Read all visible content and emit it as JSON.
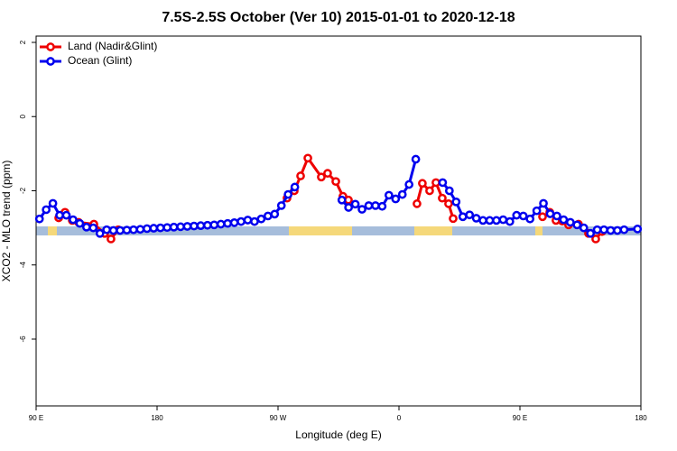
{
  "chart_data": {
    "type": "line",
    "title": "7.5S-2.5S October (Ver 10)   2015-01-01 to 2020-12-18",
    "x_label": "Longitude (deg E)",
    "y_label": "XCO2 - MLO trend (ppm)",
    "xlim": [
      90,
      540
    ],
    "ylim": [
      -7.8,
      2.17
    ],
    "xticks": [
      {
        "value": 90,
        "label": "90 E"
      },
      180,
      {
        "value": 270,
        "label": "90 W"
      },
      {
        "value": 360,
        "label": "0"
      },
      {
        "value": 450,
        "label": "90 E"
      },
      {
        "value": 540,
        "label": "180"
      }
    ],
    "yticks": [
      -6,
      -4,
      -2,
      0,
      2
    ],
    "legend": "top-left",
    "series": [
      {
        "name": "Land (Nadir&Glint)",
        "color": "#ee0000",
        "x": [
          106.8,
          111.5,
          116.9,
          121.6,
          133,
          141,
          145.7,
          151.1,
          null,
          276.7,
          282.1,
          286.8,
          292.2,
          302.2,
          306.9,
          313,
          318.3,
          322.4,
          null,
          373.4,
          377.4,
          382.8,
          387.5,
          392.2,
          396.9,
          400.3,
          null,
          466.8,
          472.2,
          476.8,
          481.5,
          486.2,
          493.6,
          501,
          506.4,
          511.1
        ],
        "values": [
          -2.73,
          -2.58,
          -2.8,
          -2.85,
          -2.9,
          -3.15,
          -3.3,
          -3.05,
          null,
          -2.2,
          -2.0,
          -1.6,
          -1.12,
          -1.63,
          -1.53,
          -1.75,
          -2.15,
          -2.25,
          null,
          -2.35,
          -1.8,
          -2.0,
          -1.78,
          -2.2,
          -2.35,
          -2.75,
          null,
          -2.7,
          -2.58,
          -2.8,
          -2.82,
          -2.92,
          -2.9,
          -3.15,
          -3.3,
          -3.1
        ]
      },
      {
        "name": "Ocean (Glint)",
        "color": "#0000ee",
        "x": [
          92.5,
          97.5,
          102.5,
          107.5,
          112.5,
          117.5,
          122.5,
          127.5,
          132.5,
          137.5,
          142.5,
          147.5,
          152.5,
          157.5,
          162.5,
          167.5,
          172.5,
          177.5,
          182.5,
          187.5,
          192.5,
          197.5,
          202.5,
          207.5,
          212.5,
          217.5,
          222.5,
          227.5,
          232.5,
          237.5,
          242.5,
          247.5,
          252.5,
          257.5,
          262.5,
          267.5,
          272.5,
          277.5,
          282.5,
          null,
          317.5,
          322.5,
          327.5,
          332.5,
          337.5,
          342.5,
          347.5,
          352.5,
          357.5,
          362.5,
          367.5,
          372.5,
          null,
          392.5,
          397.5,
          402.5,
          407.5,
          412.5,
          417.5,
          422.5,
          427.5,
          432.5,
          437.5,
          442.5,
          447.5,
          452.5,
          457.5,
          462.5,
          467.5,
          472.5,
          477.5,
          482.5,
          487.5,
          492.5,
          497.5,
          502.5,
          507.5,
          512.5,
          517.5,
          522.5,
          527.5,
          537.5
        ],
        "values": [
          -2.76,
          -2.51,
          -2.34,
          -2.66,
          -2.66,
          -2.78,
          -2.88,
          -2.98,
          -3.0,
          -3.15,
          -3.05,
          -3.07,
          -3.07,
          -3.06,
          -3.05,
          -3.04,
          -3.02,
          -3.01,
          -3.0,
          -2.99,
          -2.98,
          -2.97,
          -2.96,
          -2.95,
          -2.94,
          -2.93,
          -2.92,
          -2.9,
          -2.88,
          -2.86,
          -2.83,
          -2.79,
          -2.83,
          -2.76,
          -2.68,
          -2.63,
          -2.4,
          -2.1,
          -1.9,
          null,
          -2.25,
          -2.45,
          -2.36,
          -2.5,
          -2.4,
          -2.4,
          -2.42,
          -2.12,
          -2.22,
          -2.1,
          -1.83,
          -1.15,
          null,
          -1.78,
          -2.0,
          -2.3,
          -2.7,
          -2.65,
          -2.74,
          -2.8,
          -2.8,
          -2.8,
          -2.78,
          -2.83,
          -2.66,
          -2.68,
          -2.76,
          -2.54,
          -2.34,
          -2.62,
          -2.68,
          -2.78,
          -2.85,
          -2.92,
          -3.0,
          -3.15,
          -3.05,
          -3.05,
          -3.07,
          -3.07,
          -3.05,
          -3.03
        ]
      }
    ]
  }
}
